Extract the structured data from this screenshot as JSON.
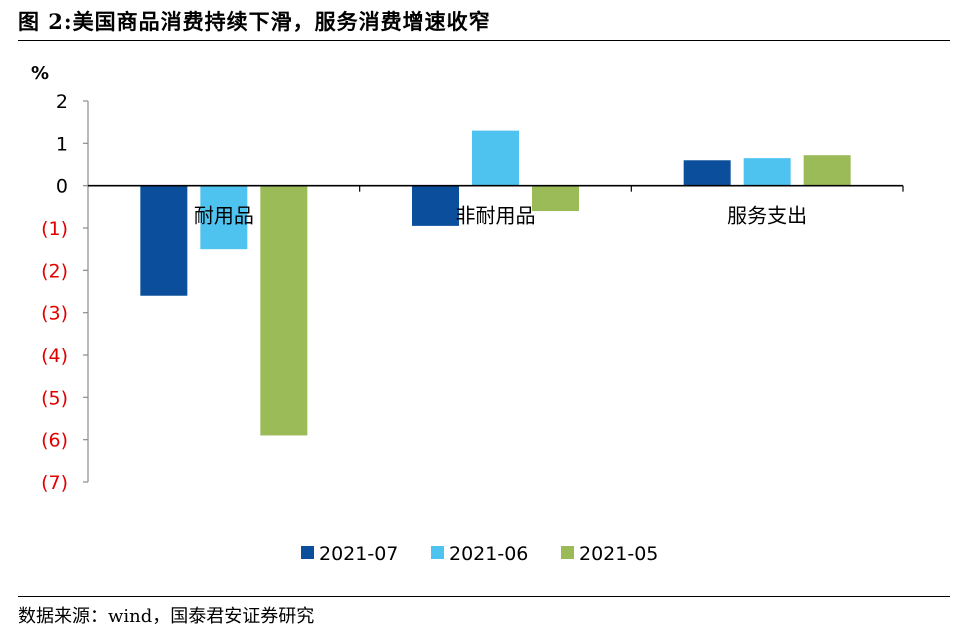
{
  "header": {
    "title": "图 2:美国商品消费持续下滑，服务消费增速收窄"
  },
  "footer": {
    "source": "数据来源：wind，国泰君安证券研究"
  },
  "chart_data": {
    "type": "bar",
    "ylabel": "%",
    "ylim": [
      -7,
      2
    ],
    "yticks": [
      2,
      1,
      0,
      -1,
      -2,
      -3,
      -4,
      -5,
      -6,
      -7
    ],
    "ytick_labels": [
      "2",
      "1",
      "0",
      "(1)",
      "(2)",
      "(3)",
      "(4)",
      "(5)",
      "(6)",
      "(7)"
    ],
    "categories": [
      "耐用品",
      "非耐用品",
      "服务支出"
    ],
    "series": [
      {
        "name": "2021-07",
        "color": "#0B4F9C",
        "values": [
          -2.6,
          -0.95,
          0.6
        ]
      },
      {
        "name": "2021-06",
        "color": "#4FC3F0",
        "values": [
          -1.5,
          1.3,
          0.65
        ]
      },
      {
        "name": "2021-05",
        "color": "#9BBB59",
        "values": [
          -5.9,
          -0.6,
          0.72
        ]
      }
    ],
    "legend_position": "bottom",
    "colors": {
      "positive_tick": "#000000",
      "negative_tick": "#E00000"
    },
    "grid": false
  }
}
